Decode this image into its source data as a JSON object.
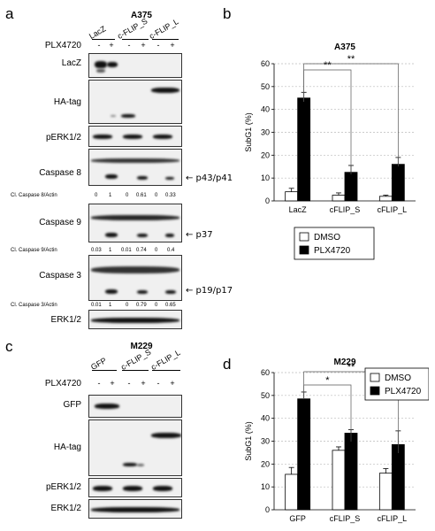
{
  "panels": {
    "a": {
      "letter": "a",
      "title": "A375",
      "treatment_label": "PLX4720",
      "groups": [
        "LacZ",
        "c-FLIP_S",
        "c-FLIP_L"
      ],
      "plus_minus": [
        "-",
        "+",
        "-",
        "+",
        "-",
        "+"
      ],
      "blots": [
        {
          "label": "LacZ"
        },
        {
          "label": "HA-tag"
        },
        {
          "label": "pERK1/2"
        },
        {
          "label": "Caspase 8",
          "arrow": "← p43/p41",
          "quant_label": "Cl. Caspase 8/Actin",
          "quant": [
            "0",
            "1",
            "0",
            "0.61",
            "0",
            "0.33"
          ]
        },
        {
          "label": "Caspase 9",
          "arrow": "← p37",
          "quant_label": "Cl. Caspase 9/Actin",
          "quant": [
            "0.03",
            "1",
            "0.01",
            "0.74",
            "0",
            "0.4"
          ]
        },
        {
          "label": "Caspase 3",
          "arrow": "← p19/p17",
          "quant_label": "Cl. Caspase 3/Actin",
          "quant": [
            "0.01",
            "1",
            "0",
            "0.79",
            "0",
            "0.65"
          ]
        },
        {
          "label": "ERK1/2"
        }
      ]
    },
    "c": {
      "letter": "c",
      "title": "M229",
      "treatment_label": "PLX4720",
      "groups": [
        "GFP",
        "c-FLIP_S",
        "c-FLIP_L"
      ],
      "plus_minus": [
        "-",
        "+",
        "-",
        "+",
        "-",
        "+"
      ],
      "blots": [
        {
          "label": "GFP"
        },
        {
          "label": "HA-tag"
        },
        {
          "label": "pERK1/2"
        },
        {
          "label": "ERK1/2"
        }
      ]
    },
    "b": {
      "letter": "b"
    },
    "d": {
      "letter": "d"
    }
  },
  "chart_data": [
    {
      "type": "bar",
      "title": "A375",
      "ylabel": "SubG1 (%)",
      "xlabel": "",
      "categories": [
        "LacZ",
        "cFLIP_S",
        "cFLIP_L"
      ],
      "ylim": [
        0,
        60
      ],
      "yticks": [
        "0",
        "10",
        "20",
        "30",
        "40",
        "50",
        "60"
      ],
      "grid": true,
      "legend_position": "below",
      "series": [
        {
          "name": "DMSO",
          "values": [
            4,
            2.5,
            2
          ],
          "errors": [
            1.5,
            1,
            0.5
          ],
          "color": "#ffffff"
        },
        {
          "name": "PLX4720",
          "values": [
            45,
            12.5,
            16
          ],
          "errors": [
            2.5,
            3,
            3
          ],
          "color": "#000000"
        }
      ],
      "annotations": [
        {
          "from": "LacZ",
          "to": "cFLIP_S",
          "text": "**"
        },
        {
          "from": "LacZ",
          "to": "cFLIP_L",
          "text": "**"
        }
      ]
    },
    {
      "type": "bar",
      "title": "M229",
      "ylabel": "SubG1 (%)",
      "xlabel": "",
      "categories": [
        "GFP",
        "cFLIP_S",
        "cFLIP_L"
      ],
      "ylim": [
        0,
        60
      ],
      "yticks": [
        "0",
        "10",
        "20",
        "30",
        "40",
        "50",
        "60"
      ],
      "grid": true,
      "legend_position": "top-right",
      "series": [
        {
          "name": "DMSO",
          "values": [
            15.5,
            26,
            16
          ],
          "errors": [
            3,
            1.5,
            2
          ],
          "color": "#ffffff"
        },
        {
          "name": "PLX4720",
          "values": [
            48.5,
            33.5,
            28.5
          ],
          "errors": [
            3,
            1.5,
            6
          ],
          "color": "#000000"
        }
      ],
      "annotations": [
        {
          "from": "GFP",
          "to": "cFLIP_S",
          "text": "*"
        },
        {
          "from": "GFP",
          "to": "cFLIP_L",
          "text": "**"
        }
      ]
    }
  ]
}
